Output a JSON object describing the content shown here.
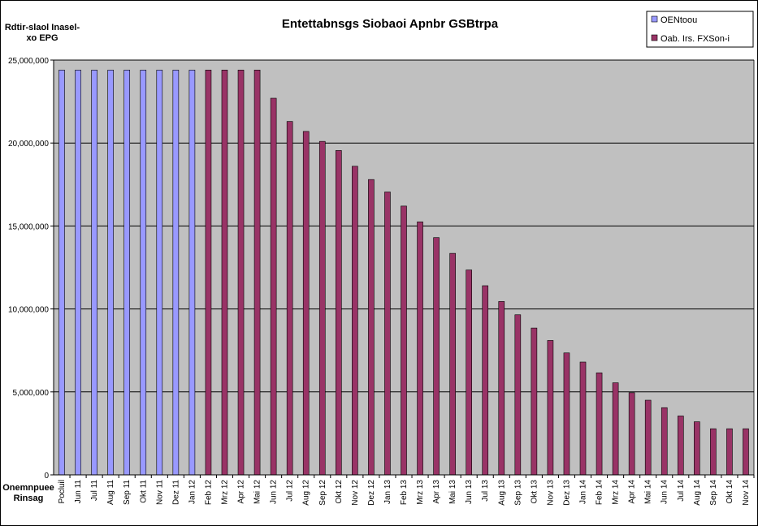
{
  "chart_data": {
    "type": "bar",
    "title": "Entettabnsgs Siobaoi Apnbr GSBtrpa",
    "ylabel_line1": "Rdtir-slaol Inasel-",
    "ylabel_line2": "xo EPG",
    "xlabel_line1": "Onemnpuee",
    "xlabel_line2": "Rinsag",
    "ylim": [
      0,
      25000000
    ],
    "yticks": [
      "0",
      "5,000,000",
      "10,000,000",
      "15,000,000",
      "20,000,000",
      "25,000,000"
    ],
    "ytick_values": [
      0,
      5000000,
      10000000,
      15000000,
      20000000,
      25000000
    ],
    "grid": true,
    "legend_position": "top-right",
    "categories": [
      "Pocluil",
      "Jun 11",
      "Jul 11",
      "Aug 11",
      "Sep 11",
      "Okt 11",
      "Nov 11",
      "Dez 11",
      "Jan 12",
      "Feb 12",
      "Mrz 12",
      "Apr 12",
      "Mai 12",
      "Jun 12",
      "Jul 12",
      "Aug 12",
      "Sep 12",
      "Okt 12",
      "Nov 12",
      "Dez 12",
      "Jan 13",
      "Feb 13",
      "Mrz 13",
      "Apr 13",
      "Mai 13",
      "Jun 13",
      "Jul 13",
      "Aug 13",
      "Sep 13",
      "Okt 13",
      "Nov 13",
      "Dez 13",
      "Jan 14",
      "Feb 14",
      "Mrz 14",
      "Apr 14",
      "Mai 14",
      "Jun 14",
      "Jul 14",
      "Aug 14",
      "Sep 14",
      "Okt 14",
      "Nov 14"
    ],
    "series": [
      {
        "name": "OENtoou",
        "color": "#9999FF",
        "values": [
          24400000,
          24400000,
          24400000,
          24400000,
          24400000,
          24400000,
          24400000,
          24400000,
          24400000,
          null,
          null,
          null,
          null,
          null,
          null,
          null,
          null,
          null,
          null,
          null,
          null,
          null,
          null,
          null,
          null,
          null,
          null,
          null,
          null,
          null,
          null,
          null,
          null,
          null,
          null,
          null,
          null,
          null,
          null,
          null,
          null,
          null,
          null
        ]
      },
      {
        "name": "Oab. Irs. FXSon-i",
        "color": "#993366",
        "values": [
          null,
          null,
          null,
          null,
          null,
          null,
          null,
          null,
          null,
          24400000,
          24400000,
          24400000,
          24400000,
          22700000,
          21300000,
          20700000,
          20100000,
          19550000,
          18600000,
          17800000,
          17050000,
          16200000,
          15250000,
          14300000,
          13350000,
          12350000,
          11400000,
          10450000,
          9650000,
          8850000,
          8100000,
          7350000,
          6800000,
          6150000,
          5550000,
          4950000,
          4500000,
          4050000,
          3550000,
          3200000,
          2780000,
          2780000,
          2780000
        ]
      }
    ]
  },
  "colors": {
    "plot_background": "#C0C0C0",
    "gridline": "#000000"
  }
}
